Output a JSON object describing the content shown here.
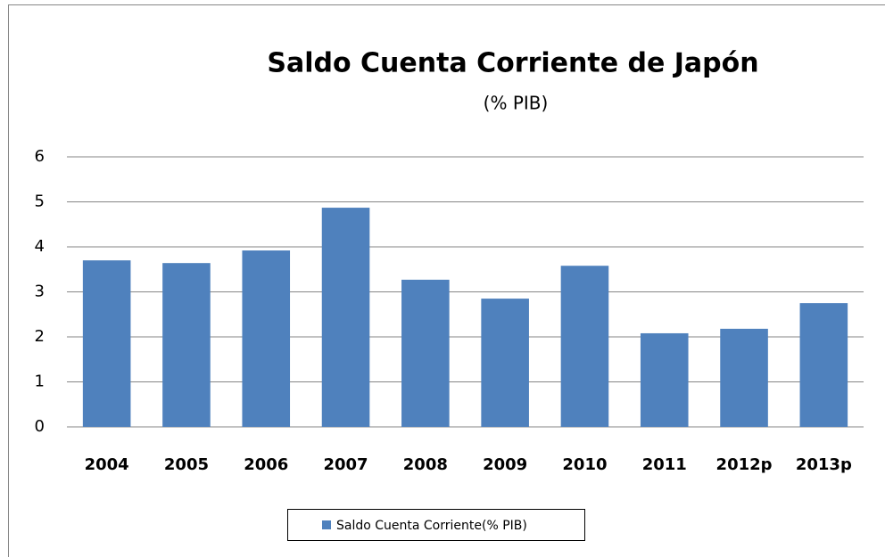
{
  "chart_data": {
    "type": "bar",
    "title": "Saldo Cuenta Corriente de Japón",
    "subtitle": "(% PIB)",
    "categories": [
      "2004",
      "2005",
      "2006",
      "2007",
      "2008",
      "2009",
      "2010",
      "2011",
      "2012p",
      "2013p"
    ],
    "series": [
      {
        "name": "Saldo Cuenta Corriente(% PIB)",
        "color": "#4f81bd",
        "values": [
          3.7,
          3.64,
          3.92,
          4.87,
          3.27,
          2.85,
          3.58,
          2.08,
          2.18,
          2.75
        ]
      }
    ],
    "ylim": [
      0,
      6
    ],
    "yticks": [
      0,
      1,
      2,
      3,
      4,
      5,
      6
    ],
    "grid": true,
    "legend": "bottom"
  }
}
